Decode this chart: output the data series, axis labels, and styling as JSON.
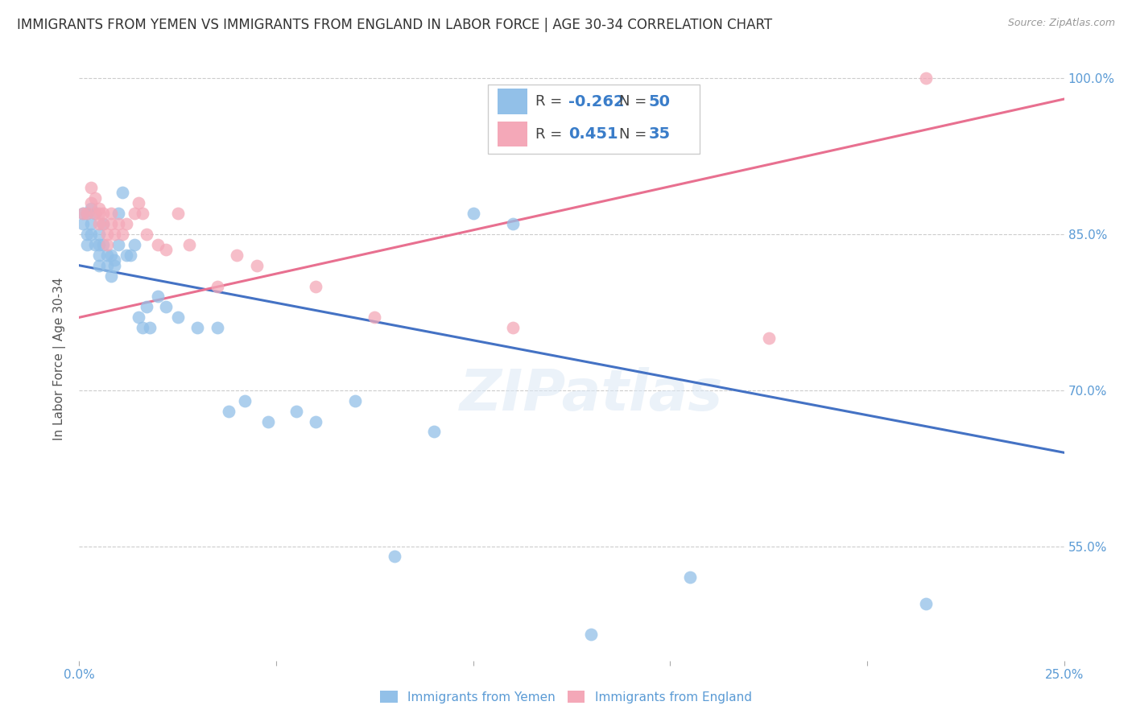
{
  "title": "IMMIGRANTS FROM YEMEN VS IMMIGRANTS FROM ENGLAND IN LABOR FORCE | AGE 30-34 CORRELATION CHART",
  "source": "Source: ZipAtlas.com",
  "ylabel": "In Labor Force | Age 30-34",
  "xlim": [
    0.0,
    0.25
  ],
  "ylim": [
    0.44,
    1.02
  ],
  "xticks": [
    0.0,
    0.05,
    0.1,
    0.15,
    0.2,
    0.25
  ],
  "xtick_labels": [
    "0.0%",
    "",
    "",
    "",
    "",
    "25.0%"
  ],
  "yticks": [
    0.55,
    0.7,
    0.85,
    1.0
  ],
  "ytick_labels": [
    "55.0%",
    "70.0%",
    "85.0%",
    "100.0%"
  ],
  "watermark": "ZIPatlas",
  "blue_color": "#92C0E8",
  "pink_color": "#F4A8B8",
  "blue_line_color": "#4472C4",
  "pink_line_color": "#E87090",
  "legend_R_blue": "-0.262",
  "legend_N_blue": "50",
  "legend_R_pink": "0.451",
  "legend_N_pink": "35",
  "blue_x": [
    0.001,
    0.001,
    0.002,
    0.002,
    0.002,
    0.003,
    0.003,
    0.003,
    0.004,
    0.004,
    0.005,
    0.005,
    0.005,
    0.005,
    0.006,
    0.006,
    0.007,
    0.007,
    0.008,
    0.008,
    0.009,
    0.009,
    0.01,
    0.01,
    0.011,
    0.012,
    0.013,
    0.014,
    0.015,
    0.016,
    0.017,
    0.018,
    0.02,
    0.022,
    0.025,
    0.03,
    0.035,
    0.038,
    0.042,
    0.048,
    0.055,
    0.06,
    0.07,
    0.08,
    0.09,
    0.1,
    0.11,
    0.13,
    0.155,
    0.215
  ],
  "blue_y": [
    0.87,
    0.86,
    0.87,
    0.85,
    0.84,
    0.875,
    0.86,
    0.85,
    0.87,
    0.84,
    0.85,
    0.84,
    0.83,
    0.82,
    0.86,
    0.84,
    0.83,
    0.82,
    0.83,
    0.81,
    0.825,
    0.82,
    0.87,
    0.84,
    0.89,
    0.83,
    0.83,
    0.84,
    0.77,
    0.76,
    0.78,
    0.76,
    0.79,
    0.78,
    0.77,
    0.76,
    0.76,
    0.68,
    0.69,
    0.67,
    0.68,
    0.67,
    0.69,
    0.54,
    0.66,
    0.87,
    0.86,
    0.465,
    0.52,
    0.495
  ],
  "pink_x": [
    0.001,
    0.002,
    0.003,
    0.003,
    0.004,
    0.004,
    0.005,
    0.005,
    0.005,
    0.006,
    0.006,
    0.007,
    0.007,
    0.008,
    0.008,
    0.009,
    0.01,
    0.011,
    0.012,
    0.014,
    0.015,
    0.016,
    0.017,
    0.02,
    0.022,
    0.025,
    0.028,
    0.035,
    0.04,
    0.045,
    0.06,
    0.075,
    0.11,
    0.175,
    0.215
  ],
  "pink_y": [
    0.87,
    0.87,
    0.895,
    0.88,
    0.885,
    0.87,
    0.875,
    0.87,
    0.86,
    0.87,
    0.86,
    0.85,
    0.84,
    0.87,
    0.86,
    0.85,
    0.86,
    0.85,
    0.86,
    0.87,
    0.88,
    0.87,
    0.85,
    0.84,
    0.835,
    0.87,
    0.84,
    0.8,
    0.83,
    0.82,
    0.8,
    0.77,
    0.76,
    0.75,
    1.0
  ]
}
